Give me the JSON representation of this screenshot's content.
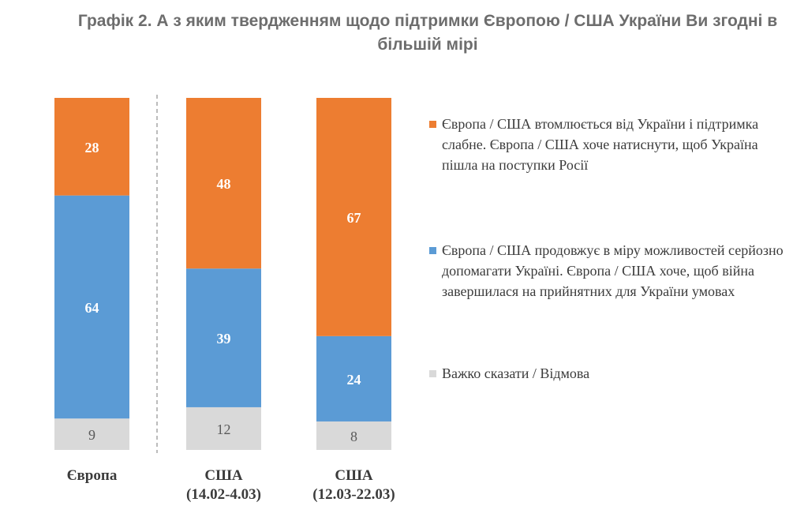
{
  "title": {
    "line1": "Графік 2. А з яким твердженням щодо підтримки Європою / США України Ви згодні в",
    "line2": "більшій мірі"
  },
  "colors": {
    "series_tired": "#ed7d31",
    "series_support": "#5b9bd5",
    "series_hard": "#d9d9d9",
    "label_light": "#ffffff",
    "label_dark": "#595959",
    "divider": "#a6a6a6",
    "category_text": "#3b3b3b"
  },
  "chart_data": {
    "type": "bar",
    "stacked": true,
    "normalized_percent": true,
    "categories": [
      [
        "Європа"
      ],
      [
        "США",
        "(14.02-4.03)"
      ],
      [
        "США",
        "(12.03-22.03)"
      ]
    ],
    "series": [
      {
        "name": "Європа / США втомлюється від України і підтримка слабне. Європа / США хоче натиснути, щоб Україна пішла на поступки Росії",
        "values": [
          28,
          48,
          67
        ]
      },
      {
        "name": "Європа / США продовжує в міру можливостей серйозно допомагати Україні. Європа / США хоче, щоб війна завершилася на прийнятних для України умовах",
        "values": [
          64,
          39,
          24
        ]
      },
      {
        "name": "Важко сказати / Відмова",
        "values": [
          9,
          12,
          8
        ]
      }
    ],
    "stack_order_bottom_to_top": [
      "Важко сказати / Відмова",
      "Європа / США продовжує в міру можливостей серйозно допомагати Україні. Європа / США хоче, щоб війна завершилася на прийнятних для України умовах",
      "Європа / США втомлюється від України і підтримка слабне. Європа / США хоче натиснути, щоб Україна пішла на поступки Росії"
    ],
    "legend_position": "right",
    "grid": false,
    "divider_after_first_category": true
  },
  "legend": {
    "items": [
      {
        "label": "Європа / США втомлюється від України і підтримка слабне. Європа / США хоче натиснути, щоб Україна пішла на поступки Росії",
        "color": "#ed7d31"
      },
      {
        "label": "Європа / США продовжує в міру можливостей серйозно допомагати Україні. Європа / США хоче, щоб війна завершилася на прийнятних для України умовах",
        "color": "#5b9bd5"
      },
      {
        "label": "Важко сказати / Відмова",
        "color": "#d9d9d9"
      }
    ]
  }
}
